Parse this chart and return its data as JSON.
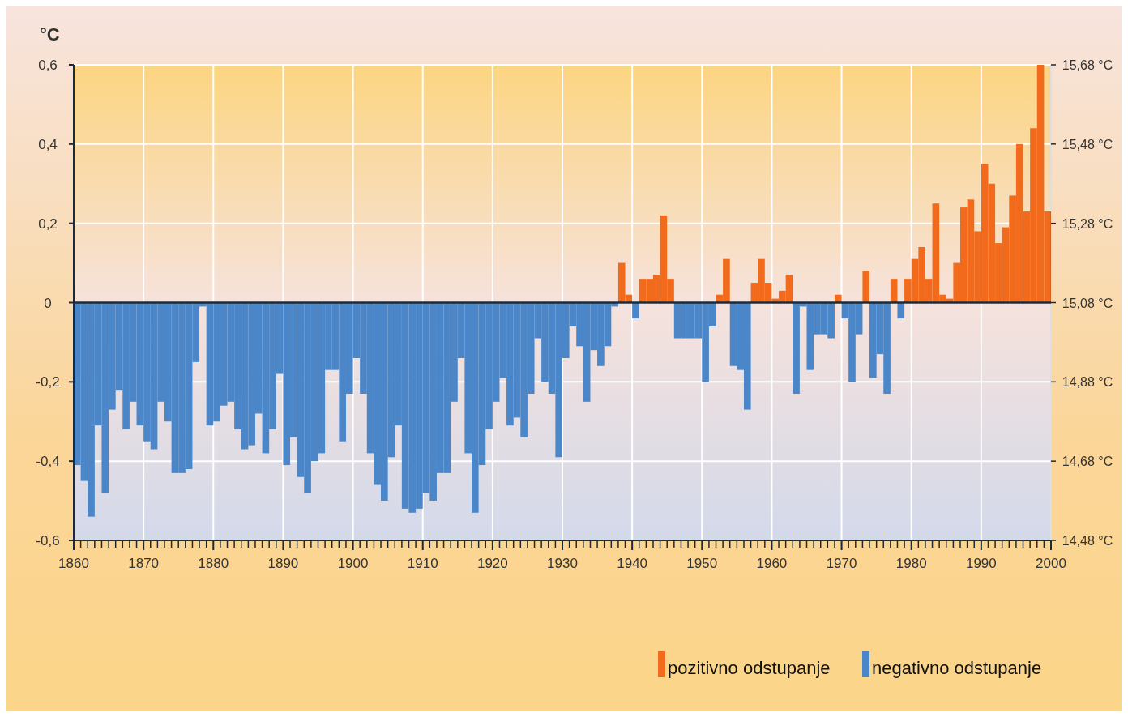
{
  "chart_data": {
    "type": "bar",
    "ylabel": "°C",
    "x": [
      1860,
      1861,
      1862,
      1863,
      1864,
      1865,
      1866,
      1867,
      1868,
      1869,
      1870,
      1871,
      1872,
      1873,
      1874,
      1875,
      1876,
      1877,
      1878,
      1879,
      1880,
      1881,
      1882,
      1883,
      1884,
      1885,
      1886,
      1887,
      1888,
      1889,
      1890,
      1891,
      1892,
      1893,
      1894,
      1895,
      1896,
      1897,
      1898,
      1899,
      1900,
      1901,
      1902,
      1903,
      1904,
      1905,
      1906,
      1907,
      1908,
      1909,
      1910,
      1911,
      1912,
      1913,
      1914,
      1915,
      1916,
      1917,
      1918,
      1919,
      1920,
      1921,
      1922,
      1923,
      1924,
      1925,
      1926,
      1927,
      1928,
      1929,
      1930,
      1931,
      1932,
      1933,
      1934,
      1935,
      1936,
      1937,
      1938,
      1939,
      1940,
      1941,
      1942,
      1943,
      1944,
      1945,
      1946,
      1947,
      1948,
      1949,
      1950,
      1951,
      1952,
      1953,
      1954,
      1955,
      1956,
      1957,
      1958,
      1959,
      1960,
      1961,
      1962,
      1963,
      1964,
      1965,
      1966,
      1967,
      1968,
      1969,
      1970,
      1971,
      1972,
      1973,
      1974,
      1975,
      1976,
      1977,
      1978,
      1979,
      1980,
      1981,
      1982,
      1983,
      1984,
      1985,
      1986,
      1987,
      1988,
      1989,
      1990,
      1991,
      1992,
      1993,
      1994,
      1995,
      1996,
      1997,
      1998,
      1999
    ],
    "series": [
      {
        "name": "pozitivno odstupanje",
        "color": "#f26a1b",
        "values": [
          null,
          null,
          null,
          null,
          null,
          null,
          null,
          null,
          null,
          null,
          null,
          null,
          null,
          null,
          null,
          null,
          null,
          null,
          null,
          null,
          null,
          null,
          null,
          null,
          null,
          null,
          null,
          null,
          null,
          null,
          null,
          null,
          null,
          null,
          null,
          null,
          null,
          null,
          null,
          null,
          null,
          null,
          null,
          null,
          null,
          null,
          null,
          null,
          null,
          null,
          null,
          null,
          null,
          null,
          null,
          null,
          null,
          null,
          null,
          null,
          null,
          null,
          null,
          null,
          null,
          null,
          null,
          null,
          null,
          null,
          null,
          null,
          null,
          null,
          null,
          null,
          null,
          null,
          0.1,
          0.02,
          null,
          0.06,
          0.06,
          0.07,
          0.22,
          0.06,
          null,
          null,
          null,
          null,
          null,
          null,
          0.02,
          0.11,
          null,
          null,
          null,
          0.05,
          0.11,
          0.05,
          0.01,
          0.03,
          0.07,
          null,
          null,
          null,
          null,
          null,
          null,
          0.02,
          null,
          null,
          null,
          0.08,
          null,
          null,
          null,
          0.06,
          null,
          0.06,
          0.11,
          0.14,
          0.06,
          0.25,
          0.02,
          0.01,
          0.1,
          0.24,
          0.26,
          0.18,
          0.35,
          0.3,
          0.15,
          0.19,
          0.27,
          0.4,
          0.23,
          0.44,
          0.6,
          0.23
        ]
      },
      {
        "name": "negativno odstupanje",
        "color": "#4a86c8",
        "values": [
          -0.41,
          -0.45,
          -0.54,
          -0.31,
          -0.48,
          -0.27,
          -0.22,
          -0.32,
          -0.25,
          -0.31,
          -0.35,
          -0.37,
          -0.25,
          -0.3,
          -0.43,
          -0.43,
          -0.42,
          -0.15,
          -0.01,
          -0.31,
          -0.3,
          -0.26,
          -0.25,
          -0.32,
          -0.37,
          -0.36,
          -0.28,
          -0.38,
          -0.32,
          -0.18,
          -0.41,
          -0.34,
          -0.44,
          -0.48,
          -0.4,
          -0.38,
          -0.17,
          -0.17,
          -0.35,
          -0.23,
          -0.14,
          -0.23,
          -0.38,
          -0.46,
          -0.5,
          -0.39,
          -0.31,
          -0.52,
          -0.53,
          -0.52,
          -0.48,
          -0.5,
          -0.43,
          -0.43,
          -0.25,
          -0.14,
          -0.38,
          -0.53,
          -0.41,
          -0.32,
          -0.25,
          -0.19,
          -0.31,
          -0.29,
          -0.34,
          -0.23,
          -0.09,
          -0.2,
          -0.23,
          -0.39,
          -0.14,
          -0.06,
          -0.11,
          -0.25,
          -0.12,
          -0.16,
          -0.11,
          -0.01,
          null,
          null,
          -0.04,
          null,
          null,
          null,
          null,
          null,
          -0.09,
          -0.09,
          -0.09,
          -0.09,
          -0.2,
          -0.06,
          null,
          null,
          -0.16,
          -0.17,
          -0.27,
          null,
          null,
          null,
          null,
          null,
          null,
          -0.23,
          -0.01,
          -0.17,
          -0.08,
          -0.08,
          -0.09,
          null,
          -0.04,
          -0.2,
          -0.08,
          null,
          -0.19,
          -0.13,
          -0.23,
          null,
          -0.04,
          null,
          null,
          null,
          null,
          null,
          null,
          null,
          null,
          null,
          null,
          null,
          null,
          null,
          null,
          null,
          null,
          null,
          null,
          null,
          null,
          null
        ]
      }
    ],
    "xlim": [
      1860,
      2000
    ],
    "xticks": [
      1860,
      {
        "value": 1861,
        "label": null
      },
      {
        "value": 1862,
        "label": null
      },
      {
        "value": 1863,
        "label": null
      },
      {
        "value": 1864,
        "label": null
      },
      {
        "value": 1865,
        "label": null
      },
      {
        "value": 1866,
        "label": null
      },
      {
        "value": 1867,
        "label": null
      },
      {
        "value": 1868,
        "label": null
      },
      {
        "value": 1869,
        "label": null
      },
      1870,
      {
        "value": 1871,
        "label": null
      },
      {
        "value": 1872,
        "label": null
      },
      {
        "value": 1873,
        "label": null
      },
      {
        "value": 1874,
        "label": null
      },
      {
        "value": 1875,
        "label": null
      },
      {
        "value": 1876,
        "label": null
      },
      {
        "value": 1877,
        "label": null
      },
      {
        "value": 1878,
        "label": null
      },
      {
        "value": 1879,
        "label": null
      },
      1880,
      {
        "value": 1881,
        "label": null
      },
      {
        "value": 1882,
        "label": null
      },
      {
        "value": 1883,
        "label": null
      },
      {
        "value": 1884,
        "label": null
      },
      {
        "value": 1885,
        "label": null
      },
      {
        "value": 1886,
        "label": null
      },
      {
        "value": 1887,
        "label": null
      },
      {
        "value": 1888,
        "label": null
      },
      {
        "value": 1889,
        "label": null
      },
      1890,
      {
        "value": 1891,
        "label": null
      },
      {
        "value": 1892,
        "label": null
      },
      {
        "value": 1893,
        "label": null
      },
      {
        "value": 1894,
        "label": null
      },
      {
        "value": 1895,
        "label": null
      },
      {
        "value": 1896,
        "label": null
      },
      {
        "value": 1897,
        "label": null
      },
      {
        "value": 1898,
        "label": null
      },
      {
        "value": 1899,
        "label": null
      },
      1900,
      {
        "value": 1901,
        "label": null
      },
      {
        "value": 1902,
        "label": null
      },
      {
        "value": 1903,
        "label": null
      },
      {
        "value": 1904,
        "label": null
      },
      {
        "value": 1905,
        "label": null
      },
      {
        "value": 1906,
        "label": null
      },
      {
        "value": 1907,
        "label": null
      },
      {
        "value": 1908,
        "label": null
      },
      {
        "value": 1909,
        "label": null
      },
      1910,
      {
        "value": 1911,
        "label": null
      },
      {
        "value": 1912,
        "label": null
      },
      {
        "value": 1913,
        "label": null
      },
      {
        "value": 1914,
        "label": null
      },
      {
        "value": 1915,
        "label": null
      },
      {
        "value": 1916,
        "label": null
      },
      {
        "value": 1917,
        "label": null
      },
      {
        "value": 1918,
        "label": null
      },
      {
        "value": 1919,
        "label": null
      },
      1920,
      {
        "value": 1921,
        "label": null
      },
      {
        "value": 1922,
        "label": null
      },
      {
        "value": 1923,
        "label": null
      },
      {
        "value": 1924,
        "label": null
      },
      {
        "value": 1925,
        "label": null
      },
      {
        "value": 1926,
        "label": null
      },
      {
        "value": 1927,
        "label": null
      },
      {
        "value": 1928,
        "label": null
      },
      {
        "value": 1929,
        "label": null
      },
      1930,
      {
        "value": 1931,
        "label": null
      },
      {
        "value": 1932,
        "label": null
      },
      {
        "value": 1933,
        "label": null
      },
      {
        "value": 1934,
        "label": null
      },
      {
        "value": 1935,
        "label": null
      },
      {
        "value": 1936,
        "label": null
      },
      {
        "value": 1937,
        "label": null
      },
      {
        "value": 1938,
        "label": null
      },
      {
        "value": 1939,
        "label": null
      },
      1940,
      {
        "value": 1941,
        "label": null
      },
      {
        "value": 1942,
        "label": null
      },
      {
        "value": 1943,
        "label": null
      },
      {
        "value": 1944,
        "label": null
      },
      {
        "value": 1945,
        "label": null
      },
      {
        "value": 1946,
        "label": null
      },
      {
        "value": 1947,
        "label": null
      },
      {
        "value": 1948,
        "label": null
      },
      {
        "value": 1949,
        "label": null
      },
      1950,
      {
        "value": 1951,
        "label": null
      },
      {
        "value": 1952,
        "label": null
      },
      {
        "value": 1953,
        "label": null
      },
      {
        "value": 1954,
        "label": null
      },
      {
        "value": 1955,
        "label": null
      },
      {
        "value": 1956,
        "label": null
      },
      {
        "value": 1957,
        "label": null
      },
      {
        "value": 1958,
        "label": null
      },
      {
        "value": 1959,
        "label": null
      },
      1960,
      {
        "value": 1961,
        "label": null
      },
      {
        "value": 1962,
        "label": null
      },
      {
        "value": 1963,
        "label": null
      },
      {
        "value": 1964,
        "label": null
      },
      {
        "value": 1965,
        "label": null
      },
      {
        "value": 1966,
        "label": null
      },
      {
        "value": 1967,
        "label": null
      },
      {
        "value": 1968,
        "label": null
      },
      {
        "value": 1969,
        "label": null
      },
      1970,
      {
        "value": 1971,
        "label": null
      },
      {
        "value": 1972,
        "label": null
      },
      {
        "value": 1973,
        "label": null
      },
      {
        "value": 1974,
        "label": null
      },
      {
        "value": 1975,
        "label": null
      },
      {
        "value": 1976,
        "label": null
      },
      {
        "value": 1977,
        "label": null
      },
      {
        "value": 1978,
        "label": null
      },
      {
        "value": 1979,
        "label": null
      },
      1980,
      {
        "value": 1981,
        "label": null
      },
      {
        "value": 1982,
        "label": null
      },
      {
        "value": 1983,
        "label": null
      },
      {
        "value": 1984,
        "label": null
      },
      {
        "value": 1985,
        "label": null
      },
      {
        "value": 1986,
        "label": null
      },
      {
        "value": 1987,
        "label": null
      },
      {
        "value": 1988,
        "label": null
      },
      {
        "value": 1989,
        "label": null
      },
      1990,
      {
        "value": 1991,
        "label": null
      },
      {
        "value": 1992,
        "label": null
      },
      {
        "value": 1993,
        "label": null
      },
      {
        "value": 1994,
        "label": null
      },
      {
        "value": 1995,
        "label": null
      },
      {
        "value": 1996,
        "label": null
      },
      {
        "value": 1997,
        "label": null
      },
      {
        "value": 1998,
        "label": null
      },
      {
        "value": 1999,
        "label": null
      },
      2000
    ],
    "ylim": [
      -0.6,
      0.6
    ],
    "yticks": [
      {
        "value": -0.6,
        "label": "-0,6"
      },
      {
        "value": -0.4,
        "label": "-0,4"
      },
      {
        "value": -0.2,
        "label": "-0,2"
      },
      0,
      {
        "value": 0.2,
        "label": "0,2"
      },
      {
        "value": 0.4,
        "label": "0,4"
      },
      {
        "value": 0.6,
        "label": "0,6"
      }
    ],
    "y2lim": [
      14.48,
      15.68
    ],
    "y2ticks": [
      {
        "value": 14.48,
        "label": "14,48 °C"
      },
      {
        "value": 14.68,
        "label": "14,68 °C"
      },
      {
        "value": 14.88,
        "label": "14,88 °C"
      },
      {
        "value": 15.08,
        "label": "15,08 °C"
      },
      {
        "value": 15.28,
        "label": "15,28 °C"
      },
      {
        "value": 15.48,
        "label": "15,48 °C"
      },
      {
        "value": 15.68,
        "label": "15,68 °C"
      }
    ],
    "ref_lines": [
      {
        "axis": "y",
        "value": 0,
        "color": "#1c2a3a"
      }
    ],
    "grid": true,
    "legend": "bottom right"
  }
}
